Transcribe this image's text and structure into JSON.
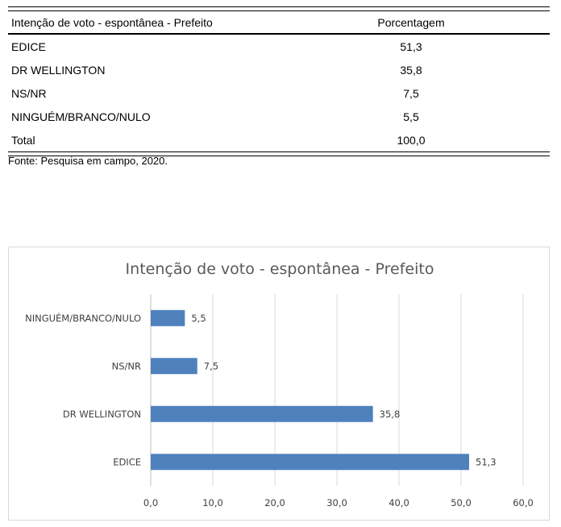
{
  "table": {
    "header": {
      "label": "Intenção de voto - espontânea - Prefeito",
      "value": "Porcentagem"
    },
    "rows": [
      {
        "label": "EDICE",
        "value": "51,3"
      },
      {
        "label": "DR WELLINGTON",
        "value": "35,8"
      },
      {
        "label": "NS/NR",
        "value": "7,5"
      },
      {
        "label": "NINGUÉM/BRANCO/NULO",
        "value": "5,5"
      },
      {
        "label": "Total",
        "value": "100,0"
      }
    ],
    "source": "Fonte: Pesquisa em campo, 2020."
  },
  "chart_data": {
    "type": "bar",
    "orientation": "horizontal",
    "title": "Intenção de voto - espontânea - Prefeito",
    "categories": [
      "EDICE",
      "DR WELLINGTON",
      "NS/NR",
      "NINGUÉM/BRANCO/NULO"
    ],
    "values": [
      51.3,
      35.8,
      7.5,
      5.5
    ],
    "value_labels": [
      "51,3",
      "35,8",
      "7,5",
      "5,5"
    ],
    "xlim": [
      0,
      60
    ],
    "ticks": [
      "0,0",
      "10,0",
      "20,0",
      "30,0",
      "40,0",
      "50,0",
      "60,0"
    ],
    "grid": "vertical",
    "bar_color": "#4f81bd"
  }
}
